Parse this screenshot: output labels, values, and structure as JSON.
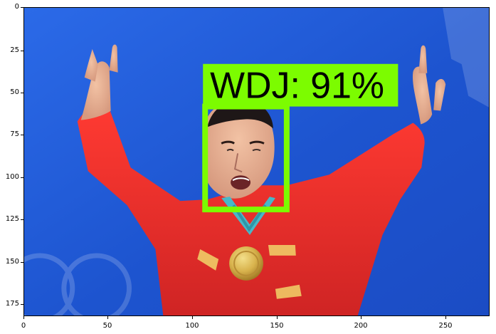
{
  "overlay": {
    "label": "WDJ: 91%",
    "box_color": "#7CFC00",
    "label_bg": "#7CFC00",
    "label_text_color": "#000000"
  },
  "axes": {
    "x_ticks": [
      "0",
      "50",
      "100",
      "150",
      "200",
      "250"
    ],
    "y_ticks": [
      "0",
      "25",
      "50",
      "75",
      "100",
      "125",
      "150",
      "175"
    ]
  },
  "colors": {
    "background": "#1f58d8",
    "jacket": "#e52f2f",
    "medal_ribbon": "#48b8c8",
    "medal": "#d9b64f"
  }
}
